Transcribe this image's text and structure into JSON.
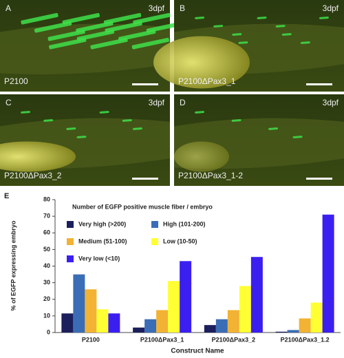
{
  "panels": [
    {
      "letter": "A",
      "stage": "3dpf",
      "label": "P2100"
    },
    {
      "letter": "B",
      "stage": "3dpf",
      "label": "P2100ΔPax3_1"
    },
    {
      "letter": "C",
      "stage": "3dpf",
      "label": "P2100ΔPax3_2"
    },
    {
      "letter": "D",
      "stage": "3dpf",
      "label": "P2100ΔPax3_1-2"
    }
  ],
  "chart_data": {
    "type": "bar",
    "panel_letter": "E",
    "legend_title": "Number of EGFP positive muscle fiber / embryo",
    "y_label": "% of EGFP expressing embryo",
    "x_label": "Construct Name",
    "categories": [
      "P2100",
      "P2100ΔPax3_1",
      "P2100ΔPax3_2",
      "P2100ΔPax3_1.2"
    ],
    "series": [
      {
        "name": "Very high (>200)",
        "color": "#1b1f5c",
        "values": [
          11.5,
          3,
          4.5,
          0.5
        ]
      },
      {
        "name": "High (101-200)",
        "color": "#3a6db6",
        "values": [
          35,
          8,
          8,
          1.5
        ]
      },
      {
        "name": "Medium (51-100)",
        "color": "#f2b233",
        "values": [
          26,
          13.5,
          13.5,
          8.5
        ]
      },
      {
        "name": "Low (10-50)",
        "color": "#ffff33",
        "values": [
          14,
          31,
          28,
          18
        ]
      },
      {
        "name": "Very low (<10)",
        "color": "#3b1ff0",
        "values": [
          11.5,
          43,
          45.5,
          71
        ]
      }
    ],
    "ylim": [
      0,
      80
    ],
    "yticks": [
      0,
      10,
      20,
      30,
      40,
      50,
      60,
      70,
      80
    ]
  }
}
